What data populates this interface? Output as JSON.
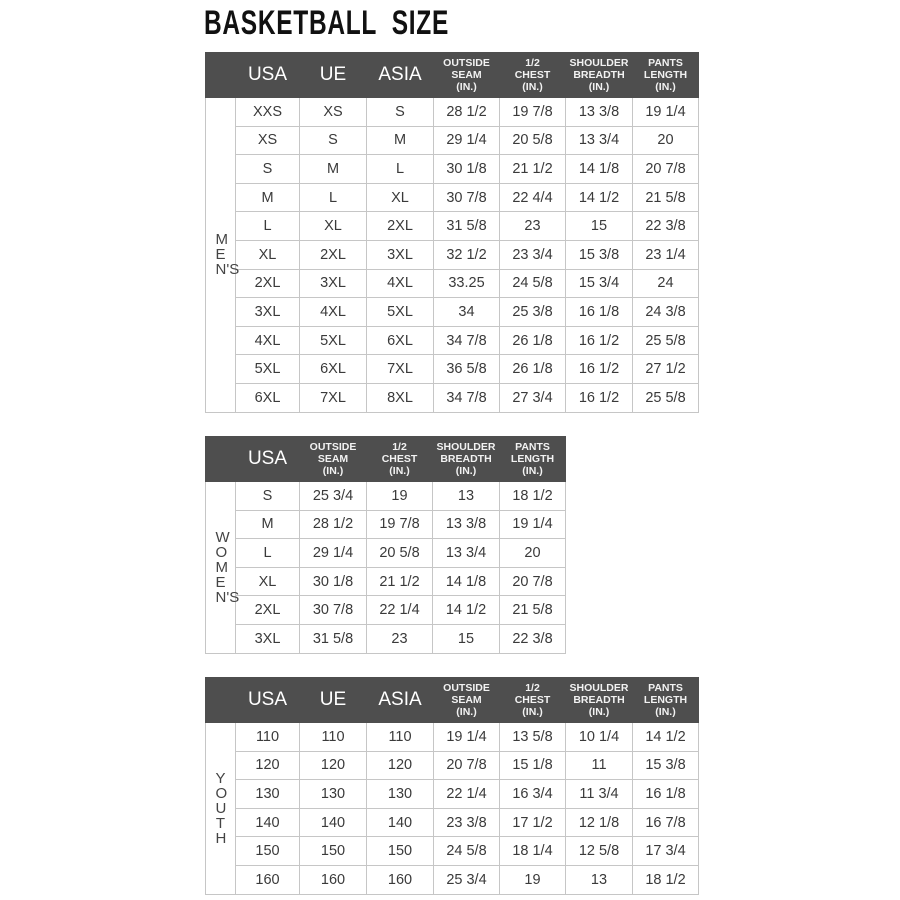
{
  "title": "BASKETBALL  SIZE",
  "colors": {
    "header_bg": "#4e4e4e",
    "header_text": "#ffffff",
    "grid": "#c6c6c6"
  },
  "tables": [
    {
      "id": "mens",
      "side_label": "MEN'S",
      "headers": [
        "USA",
        "UE",
        "ASIA",
        "OUTSIDE\nSEAM\n(IN.)",
        "1/2\nCHEST\n(IN.)",
        "SHOULDER\nBREADTH\n(IN.)",
        "PANTS\nLENGTH\n(IN.)"
      ],
      "rows": [
        [
          "XXS",
          "XS",
          "S",
          "28 1/2",
          "19 7/8",
          "13 3/8",
          "19 1/4"
        ],
        [
          "XS",
          "S",
          "M",
          "29 1/4",
          "20 5/8",
          "13 3/4",
          "20"
        ],
        [
          "S",
          "M",
          "L",
          "30 1/8",
          "21 1/2",
          "14 1/8",
          "20 7/8"
        ],
        [
          "M",
          "L",
          "XL",
          "30 7/8",
          "22 4/4",
          "14 1/2",
          "21 5/8"
        ],
        [
          "L",
          "XL",
          "2XL",
          "31 5/8",
          "23",
          "15",
          "22 3/8"
        ],
        [
          "XL",
          "2XL",
          "3XL",
          "32 1/2",
          "23 3/4",
          "15 3/8",
          "23 1/4"
        ],
        [
          "2XL",
          "3XL",
          "4XL",
          "33.25",
          "24 5/8",
          "15 3/4",
          "24"
        ],
        [
          "3XL",
          "4XL",
          "5XL",
          "34",
          "25 3/8",
          "16 1/8",
          "24 3/8"
        ],
        [
          "4XL",
          "5XL",
          "6XL",
          "34 7/8",
          "26 1/8",
          "16 1/2",
          "25 5/8"
        ],
        [
          "5XL",
          "6XL",
          "7XL",
          "36 5/8",
          "26 1/8",
          "16 1/2",
          "27 1/2"
        ],
        [
          "6XL",
          "7XL",
          "8XL",
          "34 7/8",
          "27 3/4",
          "16 1/2",
          "25 5/8"
        ]
      ]
    },
    {
      "id": "womens",
      "side_label": "WOMEN'S",
      "headers": [
        "USA",
        "OUTSIDE\nSEAM\n(IN.)",
        "1/2\nCHEST\n(IN.)",
        "SHOULDER\nBREADTH\n(IN.)",
        "PANTS\nLENGTH\n(IN.)"
      ],
      "rows": [
        [
          "S",
          "25 3/4",
          "19",
          "13",
          "18 1/2"
        ],
        [
          "M",
          "28 1/2",
          "19 7/8",
          "13 3/8",
          "19 1/4"
        ],
        [
          "L",
          "29 1/4",
          "20 5/8",
          "13 3/4",
          "20"
        ],
        [
          "XL",
          "30 1/8",
          "21 1/2",
          "14 1/8",
          "20 7/8"
        ],
        [
          "2XL",
          "30 7/8",
          "22 1/4",
          "14 1/2",
          "21 5/8"
        ],
        [
          "3XL",
          "31 5/8",
          "23",
          "15",
          "22 3/8"
        ]
      ]
    },
    {
      "id": "youth",
      "side_label": "YOUTH",
      "headers": [
        "USA",
        "UE",
        "ASIA",
        "OUTSIDE\nSEAM\n(IN.)",
        "1/2\nCHEST\n(IN.)",
        "SHOULDER\nBREADTH\n(IN.)",
        "PANTS\nLENGTH\n(IN.)"
      ],
      "rows": [
        [
          "110",
          "110",
          "110",
          "19 1/4",
          "13 5/8",
          "10 1/4",
          "14 1/2"
        ],
        [
          "120",
          "120",
          "120",
          "20 7/8",
          "15 1/8",
          "11",
          "15 3/8"
        ],
        [
          "130",
          "130",
          "130",
          "22 1/4",
          "16 3/4",
          "11 3/4",
          "16 1/8"
        ],
        [
          "140",
          "140",
          "140",
          "23 3/8",
          "17 1/2",
          "12 1/8",
          "16 7/8"
        ],
        [
          "150",
          "150",
          "150",
          "24 5/8",
          "18 1/4",
          "12 5/8",
          "17 3/4"
        ],
        [
          "160",
          "160",
          "160",
          "25 3/4",
          "19",
          "13",
          "18 1/2"
        ]
      ]
    }
  ]
}
